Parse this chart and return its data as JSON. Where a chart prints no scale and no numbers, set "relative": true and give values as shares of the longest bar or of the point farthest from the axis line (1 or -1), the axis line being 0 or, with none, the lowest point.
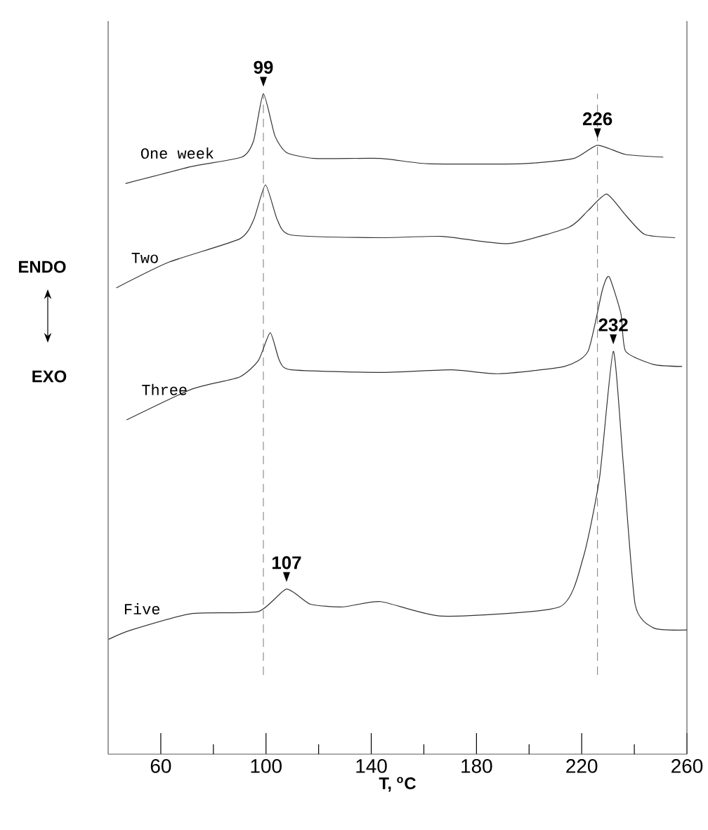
{
  "chart_data": {
    "type": "line",
    "relative": true,
    "xlabel": "T, $^{o}$C",
    "xlim": [
      40,
      260
    ],
    "xticks": [
      60,
      {
        "value": 80,
        "label": null
      },
      100,
      {
        "value": 120,
        "label": null
      },
      140,
      {
        "value": 160,
        "label": null
      },
      180,
      {
        "value": 200,
        "label": null
      },
      220,
      {
        "value": 240,
        "label": null
      },
      260
    ],
    "marker": "none",
    "line_style": "solid",
    "grid": false,
    "series": [
      {
        "name": "One week",
        "color": "#333333",
        "x": [
          46.6,
          72,
          90.8,
          95.3,
          99,
          103.4,
          107.8,
          118.5,
          143.6,
          161.5,
          197.3,
          217,
          226,
          236.7,
          251
        ],
        "values": [
          0.864,
          0.89,
          0.904,
          0.929,
          1.0,
          0.936,
          0.911,
          0.902,
          0.902,
          0.894,
          0.894,
          0.902,
          0.922,
          0.908,
          0.904
        ]
      },
      {
        "name": "Two",
        "color": "#333333",
        "x": [
          43.1,
          63.1,
          89.9,
          95.3,
          99.8,
          104.3,
          109.6,
          143.6,
          166.9,
          192,
          215.2,
          222.4,
          229.5,
          236.7,
          243.9,
          255.5
        ],
        "values": [
          0.706,
          0.745,
          0.78,
          0.809,
          0.862,
          0.809,
          0.786,
          0.782,
          0.784,
          0.773,
          0.798,
          0.823,
          0.848,
          0.816,
          0.787,
          0.782
        ]
      },
      {
        "name": "Three",
        "color": "#333333",
        "x": [
          47,
          72,
          89.9,
          97.1,
          101.6,
          105.1,
          109.6,
          143.6,
          170.5,
          188.3,
          213.4,
          222.4,
          227.8,
          230.4,
          234.9,
          236.7,
          247.4,
          258.2
        ],
        "values": [
          0.506,
          0.553,
          0.571,
          0.596,
          0.638,
          0.596,
          0.582,
          0.578,
          0.582,
          0.576,
          0.587,
          0.61,
          0.702,
          0.723,
          0.667,
          0.61,
          0.59,
          0.587
        ]
      },
      {
        "name": "Five",
        "color": "#333333",
        "x": [
          40.2,
          48.8,
          72,
          97.1,
          107.8,
          116.9,
          129.3,
          143.6,
          166.9,
          211.6,
          220.6,
          226.8,
          232,
          235.8,
          240.3,
          247.4,
          260
        ],
        "values": [
          0.174,
          0.188,
          0.213,
          0.216,
          0.25,
          0.227,
          0.223,
          0.231,
          0.209,
          0.223,
          0.298,
          0.419,
          0.61,
          0.44,
          0.227,
          0.191,
          0.188
        ]
      }
    ],
    "ref_lines": [
      {
        "axis": "x",
        "value": 99,
        "color": "#555555",
        "line_style": "dashed"
      },
      {
        "axis": "x",
        "value": 226,
        "color": "#555555",
        "line_style": "dashed"
      }
    ],
    "annotations": [
      {
        "text": "99",
        "x": 99,
        "y": 1.0
      },
      {
        "text": "226",
        "x": 226,
        "y": 0.922
      },
      {
        "text": "232",
        "x": 232,
        "y": 0.61
      },
      {
        "text": "107",
        "x": 107.8,
        "y": 0.25
      },
      "ENDO",
      "EXO"
    ]
  }
}
